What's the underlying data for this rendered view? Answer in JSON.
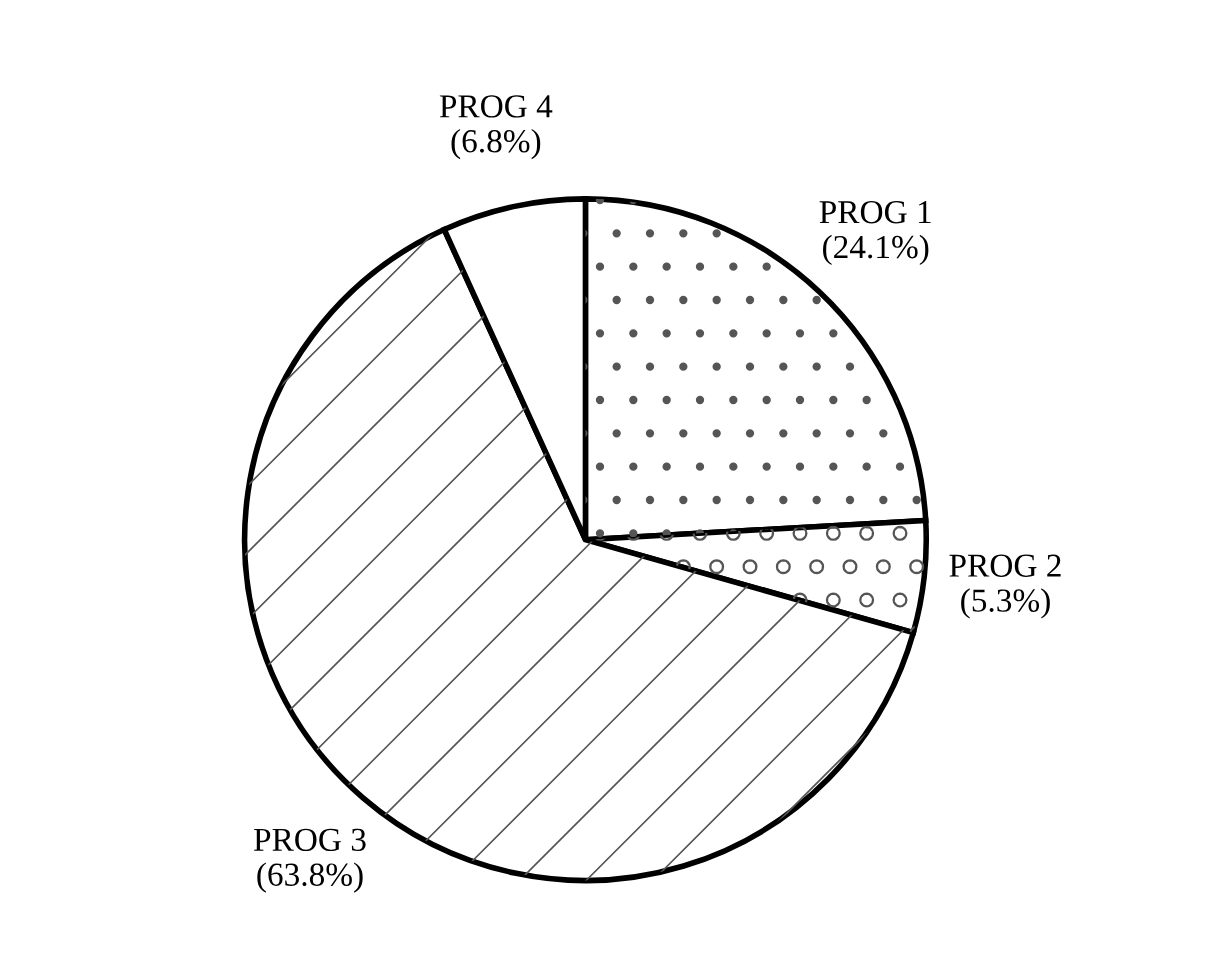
{
  "chart_data": {
    "type": "pie",
    "categories": [
      "PROG 1",
      "PROG 2",
      "PROG 3",
      "PROG 4"
    ],
    "values": [
      24.1,
      5.3,
      63.8,
      6.8
    ],
    "value_labels": [
      "(24.1%)",
      "(5.3%)",
      "(63.8%)",
      "(6.8%)"
    ],
    "colors": [
      "#ffffff",
      "#ffffff",
      "#ffffff",
      "#ffffff"
    ]
  }
}
